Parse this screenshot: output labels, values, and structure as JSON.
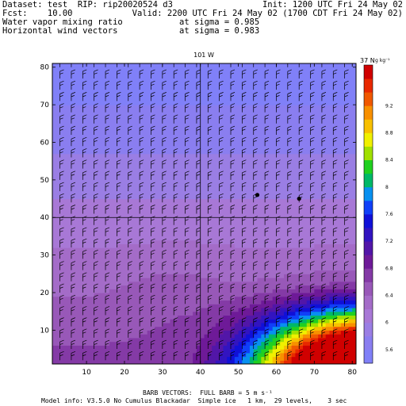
{
  "header": {
    "dataset_line": "Dataset: test  RIP: rip20020524 d3",
    "init_line": "Init: 1200 UTC Fri 24 May 02",
    "fcst_line": "Fcst:    10.00",
    "valid_line": "Valid: 2200 UTC Fri 24 May 02 (1700 CDT Fri 24 May 02)",
    "field1": "Water vapor mixing ratio",
    "field1_level": "at sigma = 0.985",
    "field2": "Horizontal wind vectors",
    "field2_level": "at sigma = 0.983"
  },
  "footer": {
    "barb_note": "BARB VECTORS:  FULL BARB = 5 m s⁻¹",
    "model_info": "Model info: V3.5.0 No Cumulus Blackadar  Simple ice   1 km,  29 levels,    3 sec"
  },
  "chart_data": {
    "type": "heatmap",
    "map_labels": {
      "top_meridian": "101 W",
      "right_parallel": "37 N"
    },
    "x_axis": {
      "ticks": [
        10,
        20,
        30,
        40,
        50,
        60,
        70,
        80
      ],
      "range": [
        1,
        81
      ]
    },
    "y_axis": {
      "ticks": [
        10,
        20,
        30,
        40,
        50,
        60,
        70,
        80
      ],
      "range": [
        1,
        81
      ]
    },
    "colorbar": {
      "unit_label": "g kg⁻¹",
      "tick_labels": [
        "5.6",
        "6",
        "6.4",
        "6.8",
        "7.2",
        "7.6",
        "8",
        "8.4",
        "8.8",
        "9.2"
      ],
      "levels": [
        5.4,
        5.6,
        5.8,
        6.0,
        6.2,
        6.4,
        6.6,
        6.8,
        7.0,
        7.2,
        7.4,
        7.6,
        7.8,
        8.0,
        8.2,
        8.4,
        8.6,
        8.8,
        9.0,
        9.2,
        9.4,
        9.6
      ],
      "colors": [
        "#8080f8",
        "#8a7ef0",
        "#9a7ee4",
        "#a878d6",
        "#a46cc8",
        "#9858b8",
        "#843aa6",
        "#6e1a98",
        "#5216a8",
        "#3214c0",
        "#1010d8",
        "#1040f8",
        "#0890f0",
        "#00b868",
        "#20d020",
        "#a0e000",
        "#f0f000",
        "#f8c000",
        "#f89000",
        "#f05800",
        "#e82800",
        "#d00000"
      ]
    },
    "field_summary": "moisture increases toward the southeast corner; highest values near x=75-80, y=1-8",
    "markers": [
      {
        "x": 55,
        "y": 46
      },
      {
        "x": 66,
        "y": 45
      }
    ],
    "grid": {
      "vertical_line_x": 40,
      "horizontal_line_y": 40
    },
    "barb_spacing": 3
  }
}
